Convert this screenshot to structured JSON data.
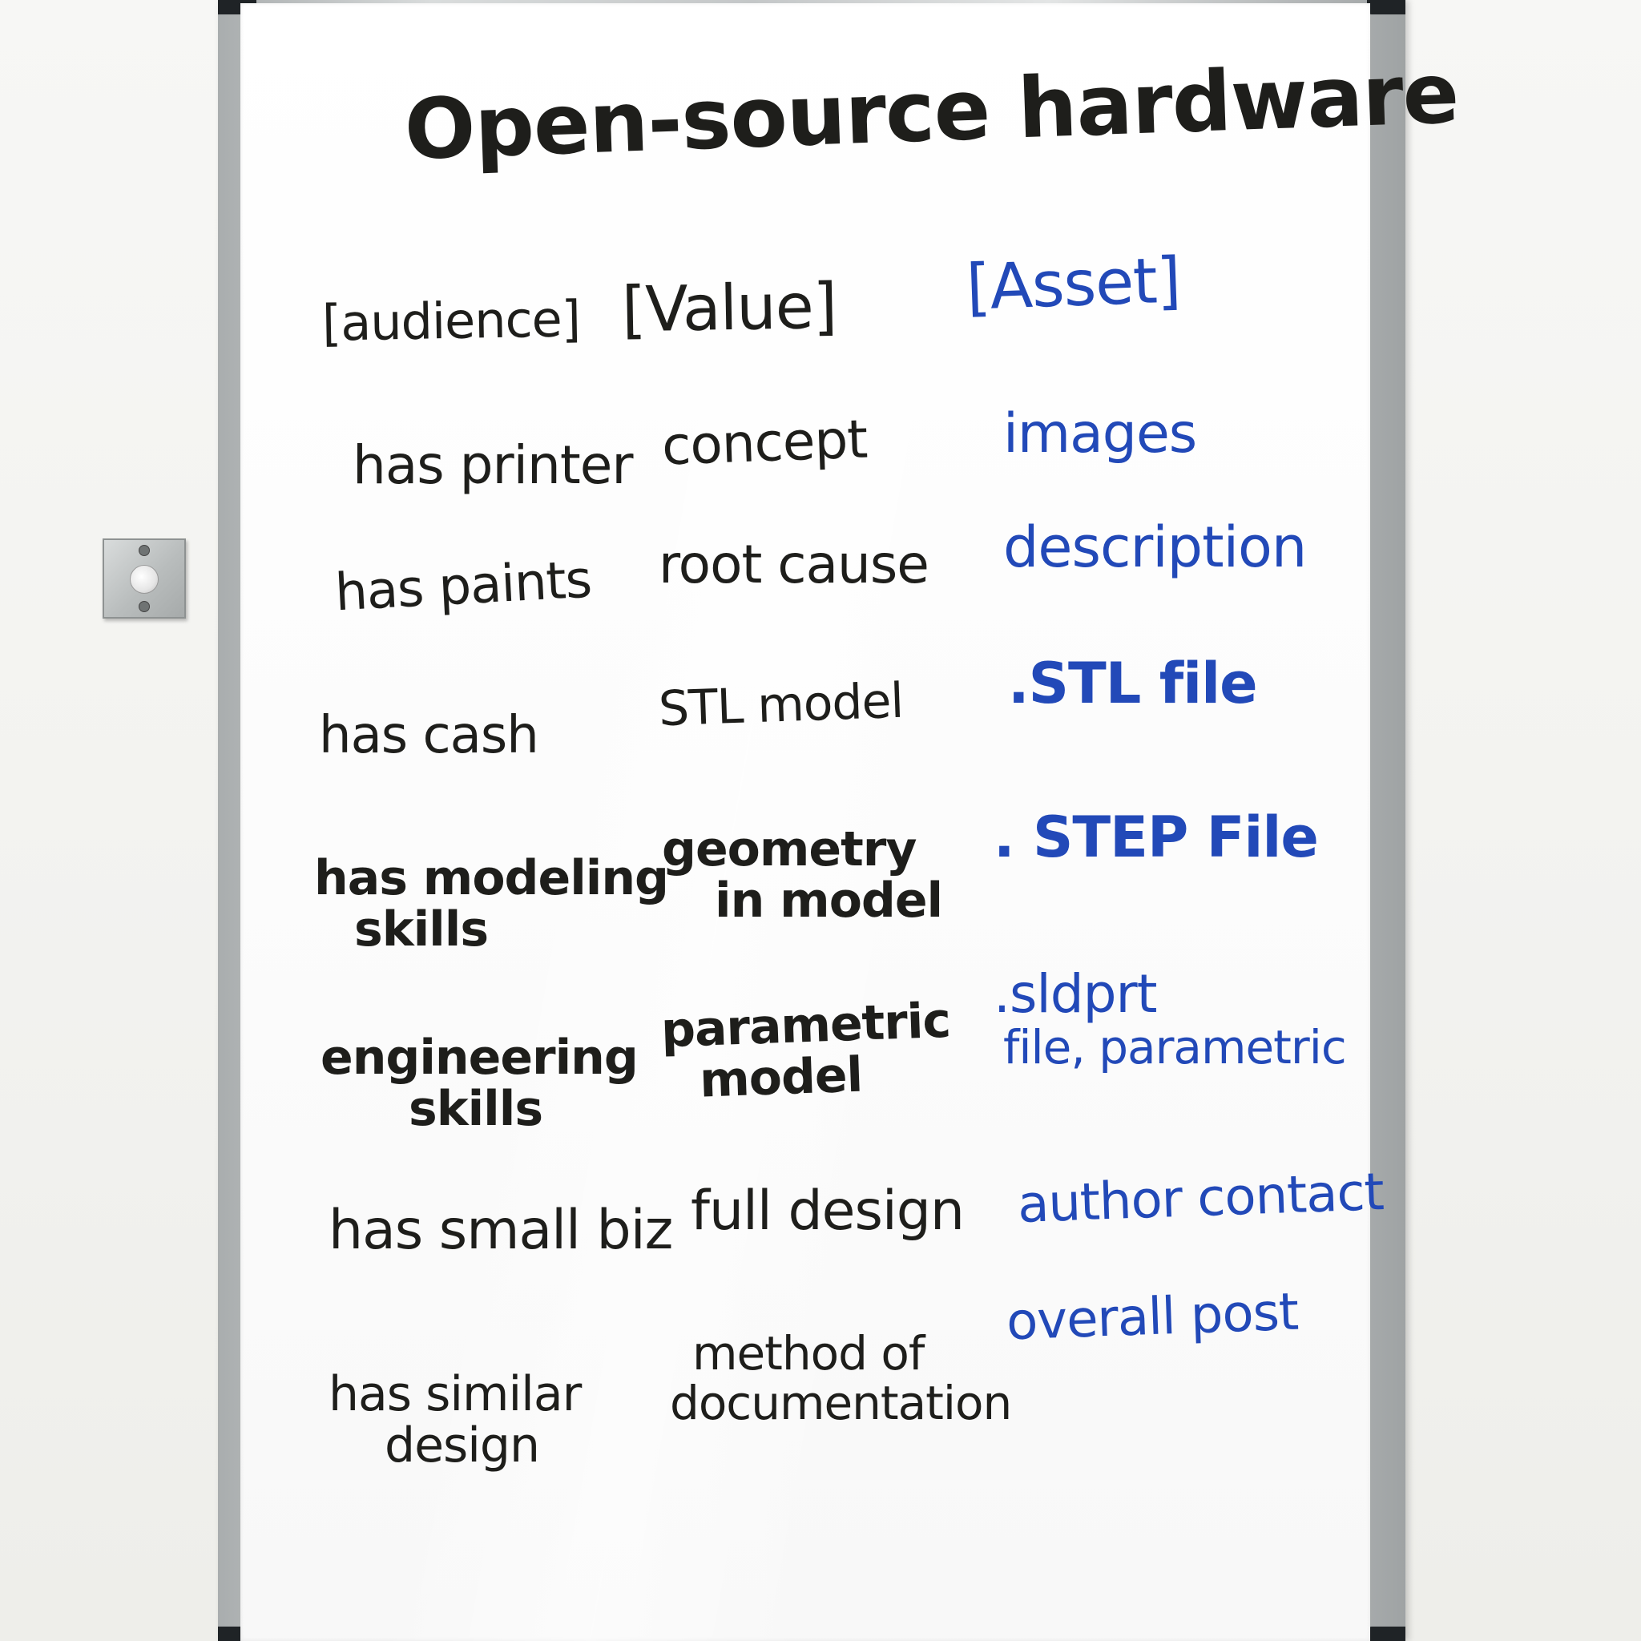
{
  "board": {
    "title": "Open-source hardware",
    "headers": {
      "audience": "[audience]",
      "value": "[Value]",
      "asset": "[Asset]"
    },
    "audience": [
      {
        "line1": "has printer",
        "line2": ""
      },
      {
        "line1": "has paints",
        "line2": ""
      },
      {
        "line1": "has cash",
        "line2": ""
      },
      {
        "line1": "has modeling",
        "line2": "skills"
      },
      {
        "line1": "engineering",
        "line2": "skills"
      },
      {
        "line1": "has small biz",
        "line2": ""
      },
      {
        "line1": "has similar",
        "line2": "design"
      }
    ],
    "value": [
      {
        "line1": "concept",
        "line2": ""
      },
      {
        "line1": "root cause",
        "line2": ""
      },
      {
        "line1": "STL model",
        "line2": ""
      },
      {
        "line1": "geometry",
        "line2": "in model"
      },
      {
        "line1": "parametric",
        "line2": "model"
      },
      {
        "line1": "full design",
        "line2": ""
      },
      {
        "line1": "method of",
        "line2": "documentation"
      }
    ],
    "asset": [
      {
        "line1": "images",
        "line2": ""
      },
      {
        "line1": "description",
        "line2": ""
      },
      {
        "line1": ".STL file",
        "line2": ""
      },
      {
        "line1": ". STEP File",
        "line2": ""
      },
      {
        "line1": ".sldprt",
        "line2": "file, parametric"
      },
      {
        "line1": "author contact",
        "line2": ""
      },
      {
        "line1": "overall post",
        "line2": ""
      }
    ]
  },
  "colors": {
    "marker_black": "#1e1e1b",
    "marker_blue": "#2249b8"
  }
}
